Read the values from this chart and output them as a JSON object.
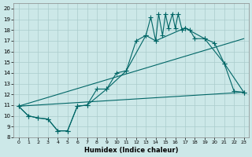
{
  "title": "",
  "xlabel": "Humidex (Indice chaleur)",
  "bg_color": "#cce8e8",
  "grid_color": "#aacccc",
  "line_color": "#006666",
  "xlim": [
    -0.5,
    23.5
  ],
  "ylim": [
    8,
    20.5
  ],
  "xticks": [
    0,
    1,
    2,
    3,
    4,
    5,
    6,
    7,
    8,
    9,
    10,
    11,
    12,
    13,
    14,
    15,
    16,
    17,
    18,
    19,
    20,
    21,
    22,
    23
  ],
  "yticks": [
    8,
    9,
    10,
    11,
    12,
    13,
    14,
    15,
    16,
    17,
    18,
    19,
    20
  ],
  "main_x": [
    0,
    1,
    2,
    3,
    4,
    5,
    6,
    7,
    8,
    9,
    10,
    11,
    12,
    13,
    13.5,
    14,
    14.3,
    14.7,
    15,
    15.3,
    15.7,
    16,
    16.3,
    16.7,
    17,
    17.5,
    18,
    19,
    20,
    21,
    22,
    23
  ],
  "main_y": [
    10.9,
    10.0,
    9.8,
    9.7,
    8.6,
    8.6,
    10.9,
    11.0,
    12.5,
    12.5,
    14.0,
    14.2,
    17.0,
    17.5,
    19.2,
    17.0,
    19.5,
    17.5,
    19.5,
    18.2,
    19.5,
    18.2,
    19.5,
    18.0,
    18.2,
    18.0,
    17.2,
    17.2,
    16.8,
    14.9,
    12.3,
    12.2
  ],
  "env_x": [
    0,
    1,
    2,
    3,
    4,
    5,
    6,
    7,
    9,
    11,
    13,
    14,
    17,
    19,
    21,
    23
  ],
  "env_y": [
    10.9,
    10.0,
    9.8,
    9.7,
    8.6,
    8.6,
    10.9,
    11.0,
    12.5,
    14.2,
    17.5,
    17.0,
    18.2,
    17.2,
    14.9,
    12.2
  ],
  "line1_x": [
    0,
    23
  ],
  "line1_y": [
    10.9,
    17.2
  ],
  "line2_x": [
    0,
    23
  ],
  "line2_y": [
    10.9,
    12.2
  ]
}
